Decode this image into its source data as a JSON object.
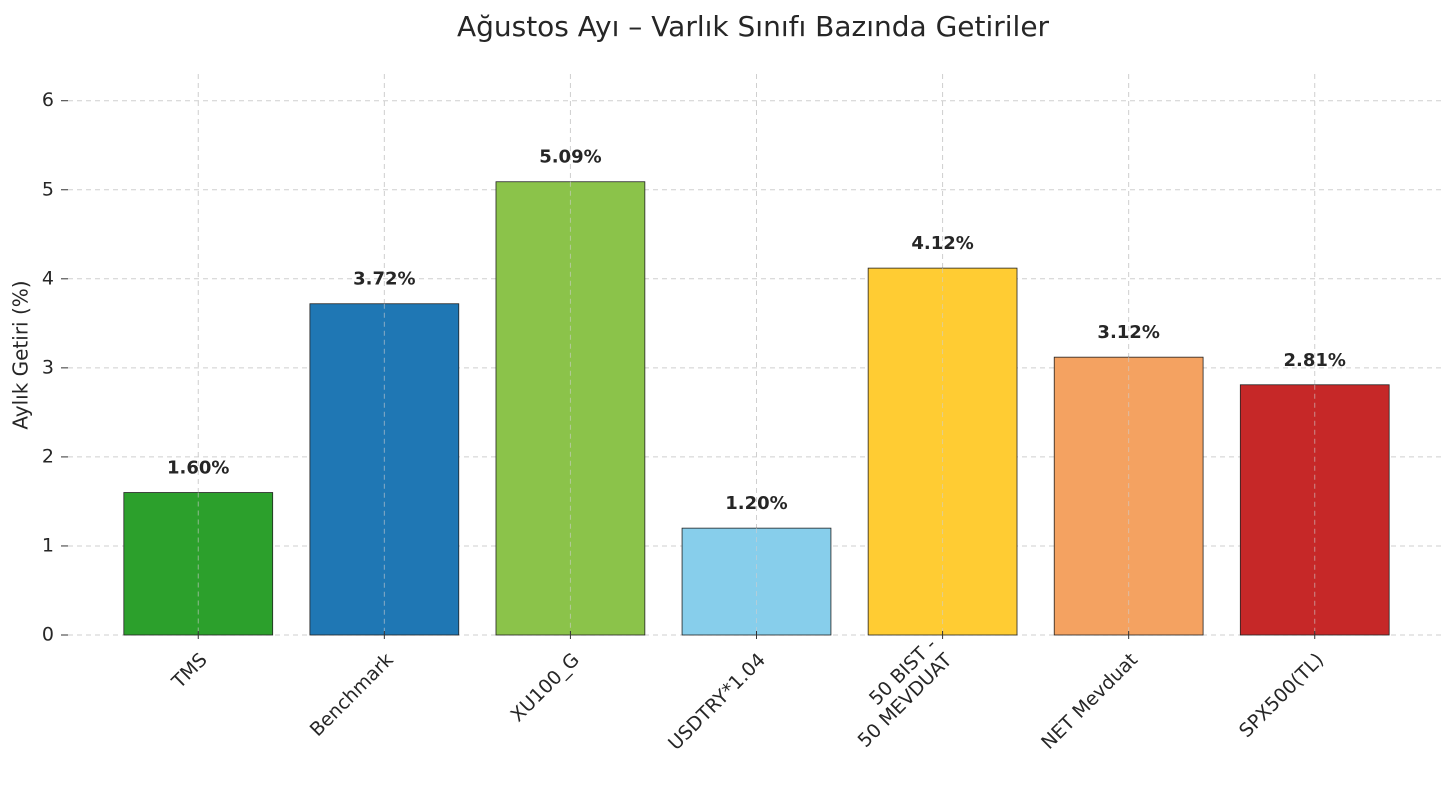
{
  "chart_data": {
    "type": "bar",
    "title": "Ağustos Ayı – Varlık Sınıfı Bazında Getiriler",
    "y_label": "Aylık Getiri (%)",
    "categories": [
      "TMS",
      "Benchmark",
      "XU100_G",
      "USDTRY*1.04",
      "50 BIST -\n50 MEVDUAT",
      "NET Mevduat",
      "SPX500(TL)"
    ],
    "values": [
      1.6,
      3.72,
      5.09,
      1.2,
      4.12,
      3.12,
      2.81
    ],
    "value_labels": [
      "1.60%",
      "3.72%",
      "5.09%",
      "1.20%",
      "4.12%",
      "3.12%",
      "2.81%"
    ],
    "colors": [
      "#2ca02c",
      "#1f77b4",
      "#8bc34a",
      "#87ceeb",
      "#ffcc33",
      "#f4a261",
      "#c62828"
    ],
    "ylim": [
      0,
      6.3
    ],
    "yticks": [
      0,
      1,
      2,
      3,
      4,
      5,
      6
    ],
    "grid": true
  }
}
